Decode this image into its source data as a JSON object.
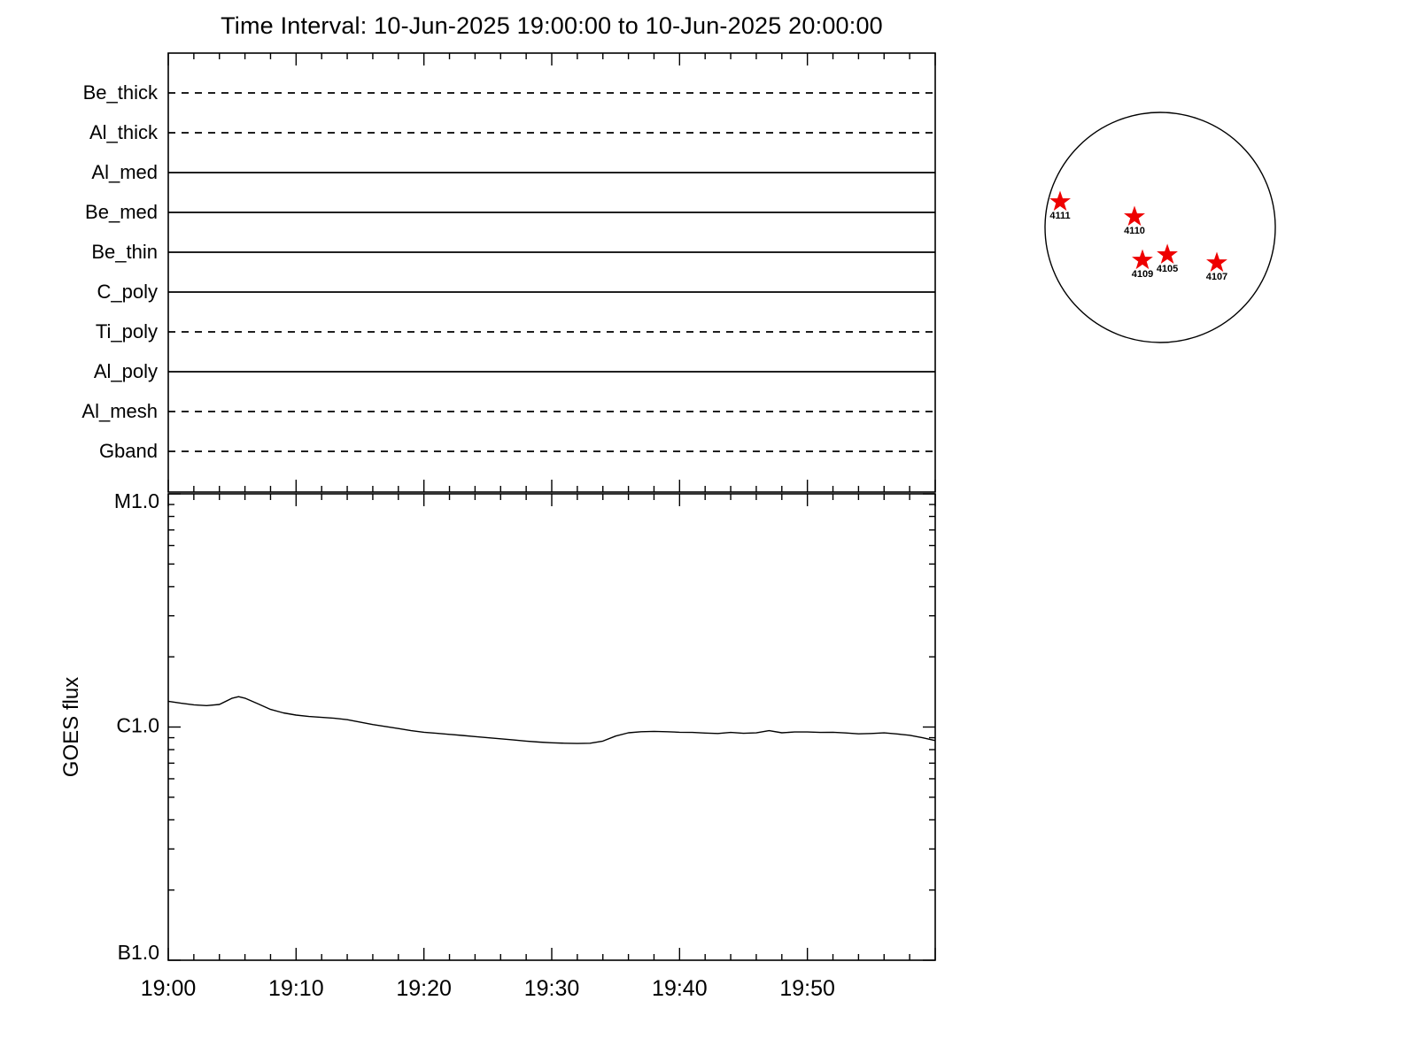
{
  "title": "Time Interval: 10-Jun-2025 19:00:00 to 10-Jun-2025 20:00:00",
  "chart_data": [
    {
      "type": "line",
      "panel": "xrt-filter-timeline",
      "x_range_minutes": [
        0,
        60
      ],
      "x_minor_tick_minutes": 2,
      "x_major_tick_minutes": 10,
      "filters": [
        {
          "label": "Be_thick",
          "style": "dashed"
        },
        {
          "label": "Al_thick",
          "style": "dashed"
        },
        {
          "label": "Al_med",
          "style": "solid"
        },
        {
          "label": "Be_med",
          "style": "solid"
        },
        {
          "label": "Be_thin",
          "style": "solid"
        },
        {
          "label": "C_poly",
          "style": "solid"
        },
        {
          "label": "Ti_poly",
          "style": "dashed"
        },
        {
          "label": "Al_poly",
          "style": "solid"
        },
        {
          "label": "Al_mesh",
          "style": "dashed"
        },
        {
          "label": "Gband",
          "style": "dashed"
        }
      ]
    },
    {
      "type": "line",
      "panel": "goes-flux",
      "ylabel": "GOES flux",
      "yscale": "log",
      "ytick_labels": [
        "M1.0",
        "C1.0",
        "B1.0"
      ],
      "ytick_values_c_units": [
        10,
        1,
        0.1
      ],
      "y_minor_c_units": [
        0.2,
        0.3,
        0.4,
        0.5,
        0.6,
        0.7,
        0.8,
        0.9,
        2,
        3,
        4,
        5,
        6,
        7,
        8,
        9
      ],
      "xtick_labels": [
        "19:00",
        "19:10",
        "19:20",
        "19:30",
        "19:40",
        "19:50"
      ],
      "xtick_minutes": [
        0,
        10,
        20,
        30,
        40,
        50
      ],
      "series": [
        {
          "name": "GOES flux",
          "points_min_cunits": [
            [
              0,
              1.29
            ],
            [
              1,
              1.265
            ],
            [
              2,
              1.245
            ],
            [
              3,
              1.235
            ],
            [
              4,
              1.25
            ],
            [
              5,
              1.33
            ],
            [
              5.5,
              1.35
            ],
            [
              6,
              1.33
            ],
            [
              7,
              1.26
            ],
            [
              8,
              1.19
            ],
            [
              9,
              1.15
            ],
            [
              10,
              1.125
            ],
            [
              11,
              1.11
            ],
            [
              12,
              1.1
            ],
            [
              13,
              1.09
            ],
            [
              14,
              1.075
            ],
            [
              15,
              1.05
            ],
            [
              16,
              1.025
            ],
            [
              17,
              1.005
            ],
            [
              18,
              0.985
            ],
            [
              19,
              0.965
            ],
            [
              20,
              0.95
            ],
            [
              21,
              0.94
            ],
            [
              22,
              0.93
            ],
            [
              23,
              0.92
            ],
            [
              24,
              0.91
            ],
            [
              25,
              0.9
            ],
            [
              26,
              0.89
            ],
            [
              27,
              0.88
            ],
            [
              28,
              0.87
            ],
            [
              29,
              0.862
            ],
            [
              30,
              0.856
            ],
            [
              31,
              0.852
            ],
            [
              32,
              0.85
            ],
            [
              33,
              0.852
            ],
            [
              34,
              0.87
            ],
            [
              35,
              0.915
            ],
            [
              36,
              0.945
            ],
            [
              37,
              0.955
            ],
            [
              38,
              0.958
            ],
            [
              39,
              0.955
            ],
            [
              40,
              0.95
            ],
            [
              41,
              0.948
            ],
            [
              42,
              0.942
            ],
            [
              43,
              0.938
            ],
            [
              44,
              0.948
            ],
            [
              45,
              0.94
            ],
            [
              46,
              0.944
            ],
            [
              47,
              0.965
            ],
            [
              48,
              0.945
            ],
            [
              49,
              0.952
            ],
            [
              50,
              0.952
            ],
            [
              51,
              0.948
            ],
            [
              52,
              0.95
            ],
            [
              53,
              0.943
            ],
            [
              54,
              0.935
            ],
            [
              55,
              0.938
            ],
            [
              56,
              0.944
            ],
            [
              57,
              0.934
            ],
            [
              58,
              0.922
            ],
            [
              59,
              0.9
            ],
            [
              60,
              0.875
            ]
          ]
        }
      ]
    },
    {
      "type": "scatter",
      "panel": "solar-disk",
      "marker": {
        "shape": "star",
        "color": "#ee0000"
      },
      "active_regions": [
        {
          "label": "4111",
          "x": -0.869,
          "y": -0.223
        },
        {
          "label": "4110",
          "x": -0.223,
          "y": -0.092
        },
        {
          "label": "4109",
          "x": -0.154,
          "y": 0.285
        },
        {
          "label": "4105",
          "x": 0.062,
          "y": 0.238
        },
        {
          "label": "4107",
          "x": 0.492,
          "y": 0.308
        }
      ]
    }
  ]
}
